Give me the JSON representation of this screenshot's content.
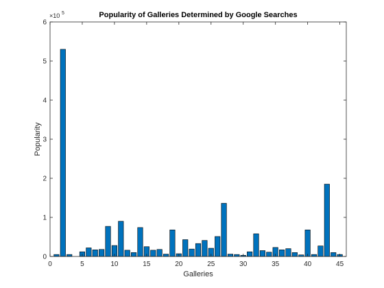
{
  "chart_data": {
    "type": "bar",
    "title": "Popularity of Galleries Determined by Google Searches",
    "xlabel": "Galleries",
    "ylabel": "Popularity",
    "y_exponent_label": "×10",
    "y_exponent_power": "5",
    "xlim": [
      0,
      46
    ],
    "ylim": [
      0,
      6
    ],
    "xticks": [
      0,
      5,
      10,
      15,
      20,
      25,
      30,
      35,
      40,
      45
    ],
    "yticks": [
      0,
      1,
      2,
      3,
      4,
      5,
      6
    ],
    "grid": false,
    "bar_color": "#0072BD",
    "edge_color": "#000000",
    "x": [
      1,
      2,
      3,
      4,
      5,
      6,
      7,
      8,
      9,
      10,
      11,
      12,
      13,
      14,
      15,
      16,
      17,
      18,
      19,
      20,
      21,
      22,
      23,
      24,
      25,
      26,
      27,
      28,
      29,
      30,
      31,
      32,
      33,
      34,
      35,
      36,
      37,
      38,
      39,
      40,
      41,
      42,
      43,
      44,
      45
    ],
    "values": [
      0.05,
      5.3,
      0.05,
      0,
      0.12,
      0.22,
      0.17,
      0.18,
      0.77,
      0.28,
      0.9,
      0.16,
      0.1,
      0.74,
      0.25,
      0.16,
      0.18,
      0.06,
      0.68,
      0.07,
      0.43,
      0.19,
      0.33,
      0.41,
      0.21,
      0.51,
      1.36,
      0.06,
      0.05,
      0.03,
      0.12,
      0.58,
      0.15,
      0.11,
      0.23,
      0.17,
      0.2,
      0.1,
      0.04,
      0.68,
      0.05,
      0.27,
      1.85,
      0.1,
      0.05
    ]
  }
}
